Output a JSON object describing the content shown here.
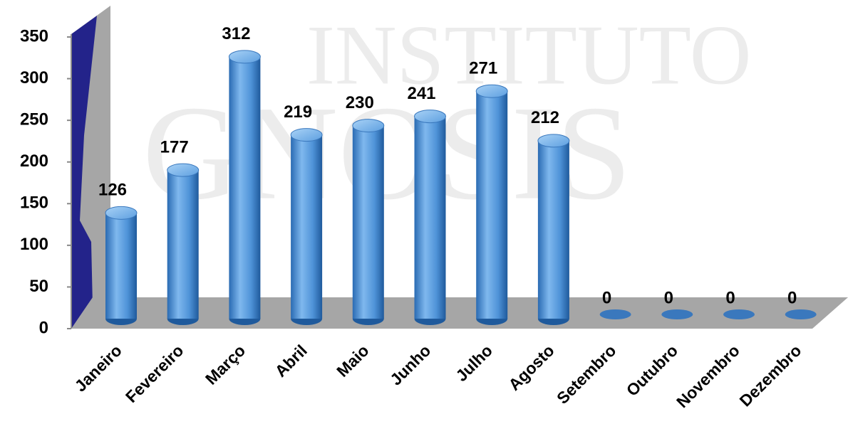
{
  "chart_data": {
    "type": "bar3d",
    "watermark": [
      "INSTITUTO",
      "GNOSIS"
    ],
    "categories": [
      "Janeiro",
      "Fevereiro",
      "Março",
      "Abril",
      "Maio",
      "Junho",
      "Julho",
      "Agosto",
      "Setembro",
      "Outubro",
      "Novembro",
      "Dezembro"
    ],
    "values": [
      126,
      177,
      312,
      219,
      230,
      241,
      271,
      212,
      0,
      0,
      0,
      0
    ],
    "color": "#4f93d8",
    "ylim": [
      0,
      350
    ],
    "yticks": [
      0,
      50,
      100,
      150,
      200,
      250,
      300,
      350
    ],
    "grid": false
  }
}
